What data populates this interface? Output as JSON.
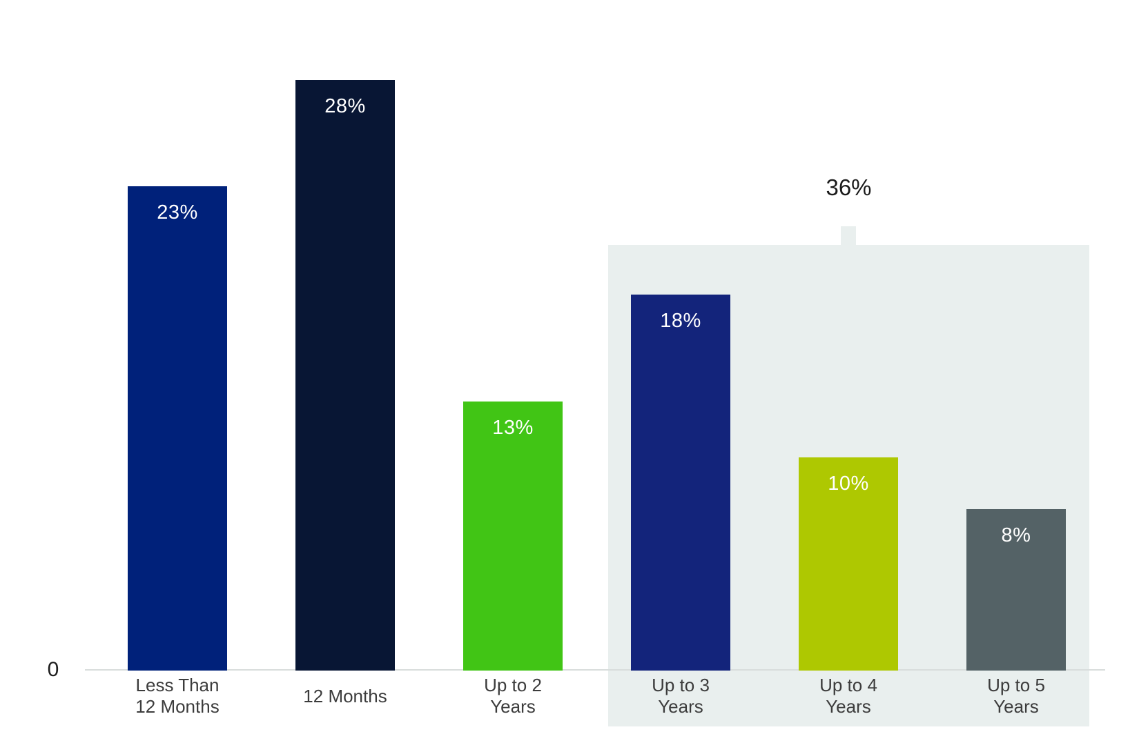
{
  "chart_data": {
    "type": "bar",
    "title": "",
    "xlabel": "",
    "ylabel": "",
    "grid": false,
    "legend": "none",
    "ylim": [
      0,
      30
    ],
    "baseline_label": "0",
    "categories": [
      "Less Than 12 Months",
      "12 Months",
      "Up to 2 Years",
      "Up to 3 Years",
      "Up to 4 Years",
      "Up to 5 Years"
    ],
    "values": [
      23,
      28,
      13,
      18,
      10,
      8
    ],
    "bars": [
      {
        "category": "Less Than 12 Months",
        "category_lines": [
          "Less Than",
          "12 Months"
        ],
        "value": 23,
        "label": "23%",
        "color": "#00217a"
      },
      {
        "category": "12 Months",
        "category_lines": [
          "12 Months"
        ],
        "value": 28,
        "label": "28%",
        "color": "#081634"
      },
      {
        "category": "Up to 2 Years",
        "category_lines": [
          "Up to 2",
          "Years"
        ],
        "value": 13,
        "label": "13%",
        "color": "#41c515"
      },
      {
        "category": "Up to 3 Years",
        "category_lines": [
          "Up to 3",
          "Years"
        ],
        "value": 18,
        "label": "18%",
        "color": "#13247b"
      },
      {
        "category": "Up to 4 Years",
        "category_lines": [
          "Up to 4",
          "Years"
        ],
        "value": 10,
        "label": "10%",
        "color": "#aec801"
      },
      {
        "category": "Up to 5 Years",
        "category_lines": [
          "Up to 5",
          "Years"
        ],
        "value": 8,
        "label": "8%",
        "color": "#546266"
      }
    ],
    "value_label_color": "#ffffff",
    "category_label_color": "#3c3c3c",
    "axis_line_color": "#d8dddc",
    "highlight_group": {
      "label": "36%",
      "label_color": "#1b1b1b",
      "background": "#e9efee",
      "covers_categories": [
        "Up to 3 Years",
        "Up to 4 Years",
        "Up to 5 Years"
      ],
      "start_index": 3,
      "end_index": 5
    }
  }
}
